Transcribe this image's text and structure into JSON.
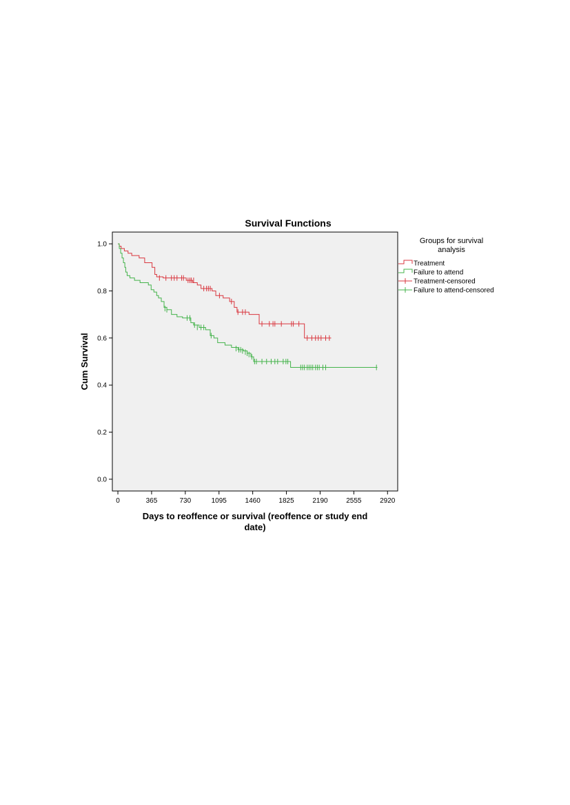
{
  "chart_data": {
    "type": "line",
    "subtype": "kaplan-meier-survival",
    "title": "Survival Functions",
    "xlabel": "Days to reoffence or survival (reoffence or study end date)",
    "ylabel": "Cum Survival",
    "xlim": [
      -60,
      3030
    ],
    "ylim": [
      -0.05,
      1.05
    ],
    "xticks": [
      0,
      365,
      730,
      1095,
      1460,
      1825,
      2190,
      2555,
      2920
    ],
    "xtick_labels": [
      "0",
      "365",
      "730",
      "1095",
      "1460",
      "1825",
      "2190",
      "2555",
      "2920"
    ],
    "yticks": [
      0.0,
      0.2,
      0.4,
      0.6,
      0.8,
      1.0
    ],
    "ytick_labels": [
      "0.0",
      "0.2",
      "0.4",
      "0.6",
      "0.8",
      "1.0"
    ],
    "grid": false,
    "plot_background": "#f0f0f0",
    "legend": {
      "title": "Groups for survival analysis",
      "title_lines": [
        "Groups for survival",
        "analysis"
      ],
      "placement": "right",
      "entries": [
        "Treatment",
        "Failure to attend",
        "Treatment-censored",
        "Failure to attend-censored"
      ]
    },
    "series": [
      {
        "name": "Treatment",
        "color": "#d9363e",
        "steps": [
          [
            0,
            1.0
          ],
          [
            15,
            0.99
          ],
          [
            35,
            0.98
          ],
          [
            70,
            0.97
          ],
          [
            110,
            0.96
          ],
          [
            150,
            0.95
          ],
          [
            230,
            0.94
          ],
          [
            290,
            0.92
          ],
          [
            370,
            0.9
          ],
          [
            400,
            0.87
          ],
          [
            420,
            0.86
          ],
          [
            490,
            0.855
          ],
          [
            740,
            0.845
          ],
          [
            810,
            0.835
          ],
          [
            860,
            0.825
          ],
          [
            900,
            0.81
          ],
          [
            1020,
            0.8
          ],
          [
            1060,
            0.78
          ],
          [
            1140,
            0.77
          ],
          [
            1210,
            0.755
          ],
          [
            1260,
            0.73
          ],
          [
            1290,
            0.71
          ],
          [
            1420,
            0.7
          ],
          [
            1530,
            0.66
          ],
          [
            2020,
            0.6
          ],
          [
            2310,
            0.6
          ]
        ],
        "censored": [
          [
            450,
            0.855
          ],
          [
            520,
            0.855
          ],
          [
            580,
            0.855
          ],
          [
            610,
            0.855
          ],
          [
            640,
            0.855
          ],
          [
            690,
            0.855
          ],
          [
            710,
            0.855
          ],
          [
            760,
            0.845
          ],
          [
            780,
            0.845
          ],
          [
            795,
            0.845
          ],
          [
            820,
            0.845
          ],
          [
            930,
            0.81
          ],
          [
            960,
            0.81
          ],
          [
            980,
            0.81
          ],
          [
            1000,
            0.81
          ],
          [
            1100,
            0.78
          ],
          [
            1230,
            0.755
          ],
          [
            1300,
            0.71
          ],
          [
            1350,
            0.71
          ],
          [
            1380,
            0.71
          ],
          [
            1560,
            0.66
          ],
          [
            1640,
            0.66
          ],
          [
            1680,
            0.66
          ],
          [
            1700,
            0.66
          ],
          [
            1770,
            0.66
          ],
          [
            1880,
            0.66
          ],
          [
            1900,
            0.66
          ],
          [
            1960,
            0.66
          ],
          [
            2050,
            0.6
          ],
          [
            2100,
            0.6
          ],
          [
            2140,
            0.6
          ],
          [
            2170,
            0.6
          ],
          [
            2200,
            0.6
          ],
          [
            2250,
            0.6
          ],
          [
            2290,
            0.6
          ]
        ]
      },
      {
        "name": "Failure to attend",
        "color": "#43b34a",
        "steps": [
          [
            0,
            1.0
          ],
          [
            15,
            0.98
          ],
          [
            30,
            0.96
          ],
          [
            45,
            0.94
          ],
          [
            60,
            0.92
          ],
          [
            75,
            0.9
          ],
          [
            85,
            0.88
          ],
          [
            100,
            0.865
          ],
          [
            130,
            0.855
          ],
          [
            180,
            0.845
          ],
          [
            240,
            0.835
          ],
          [
            330,
            0.825
          ],
          [
            360,
            0.805
          ],
          [
            390,
            0.795
          ],
          [
            420,
            0.78
          ],
          [
            440,
            0.77
          ],
          [
            470,
            0.755
          ],
          [
            500,
            0.73
          ],
          [
            530,
            0.72
          ],
          [
            580,
            0.7
          ],
          [
            640,
            0.69
          ],
          [
            700,
            0.685
          ],
          [
            790,
            0.665
          ],
          [
            820,
            0.655
          ],
          [
            880,
            0.645
          ],
          [
            950,
            0.635
          ],
          [
            1000,
            0.61
          ],
          [
            1040,
            0.6
          ],
          [
            1080,
            0.58
          ],
          [
            1160,
            0.57
          ],
          [
            1230,
            0.56
          ],
          [
            1300,
            0.55
          ],
          [
            1360,
            0.545
          ],
          [
            1400,
            0.535
          ],
          [
            1440,
            0.52
          ],
          [
            1470,
            0.5
          ],
          [
            1560,
            0.5
          ],
          [
            1870,
            0.475
          ],
          [
            2810,
            0.475
          ]
        ],
        "censored": [
          [
            510,
            0.725
          ],
          [
            530,
            0.72
          ],
          [
            750,
            0.685
          ],
          [
            780,
            0.685
          ],
          [
            830,
            0.655
          ],
          [
            860,
            0.645
          ],
          [
            900,
            0.645
          ],
          [
            930,
            0.645
          ],
          [
            1010,
            0.61
          ],
          [
            1280,
            0.555
          ],
          [
            1310,
            0.55
          ],
          [
            1330,
            0.55
          ],
          [
            1350,
            0.545
          ],
          [
            1380,
            0.54
          ],
          [
            1400,
            0.535
          ],
          [
            1420,
            0.53
          ],
          [
            1450,
            0.52
          ],
          [
            1480,
            0.5
          ],
          [
            1500,
            0.5
          ],
          [
            1560,
            0.5
          ],
          [
            1610,
            0.5
          ],
          [
            1660,
            0.5
          ],
          [
            1700,
            0.5
          ],
          [
            1730,
            0.5
          ],
          [
            1790,
            0.5
          ],
          [
            1820,
            0.5
          ],
          [
            1840,
            0.5
          ],
          [
            1980,
            0.475
          ],
          [
            2000,
            0.475
          ],
          [
            2020,
            0.475
          ],
          [
            2050,
            0.475
          ],
          [
            2070,
            0.475
          ],
          [
            2090,
            0.475
          ],
          [
            2110,
            0.475
          ],
          [
            2140,
            0.475
          ],
          [
            2160,
            0.475
          ],
          [
            2180,
            0.475
          ],
          [
            2220,
            0.475
          ],
          [
            2250,
            0.475
          ],
          [
            2800,
            0.475
          ]
        ]
      }
    ]
  }
}
